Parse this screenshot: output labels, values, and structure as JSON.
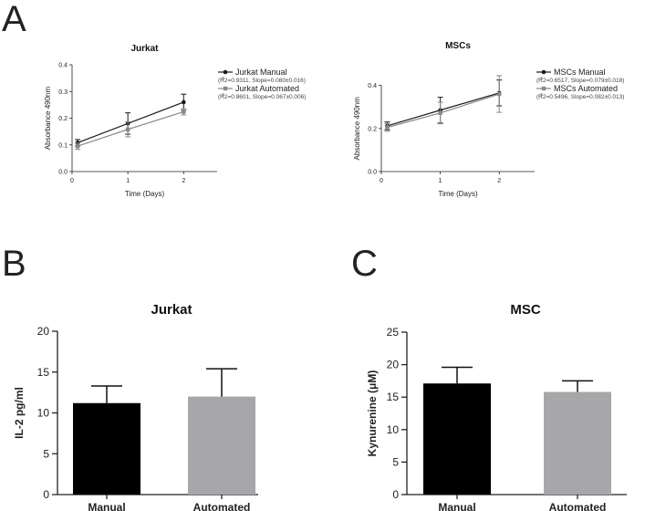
{
  "figure": {
    "panel_letters": [
      "A",
      "B",
      "C"
    ]
  },
  "chart_data": [
    {
      "id": "a1",
      "type": "line",
      "title": "Jurkat",
      "xlabel": "Time (Days)",
      "ylabel": "Absorbance 490nm",
      "xlim": [
        0,
        2.6
      ],
      "ylim": [
        0,
        0.4
      ],
      "xticks": [
        0,
        1,
        2
      ],
      "yticks": [
        0.0,
        0.1,
        0.2,
        0.3,
        0.4
      ],
      "ytick_labels": [
        "0.0",
        "0.1",
        "0.2",
        "0.3",
        "0.4"
      ],
      "series": [
        {
          "name": "Jurkat Manual",
          "fit": "(R2=0.9311, Slope=0.080±0.016)",
          "sup": "2",
          "color": "#1a1a1a",
          "marker": "circle",
          "x": [
            0.1,
            1,
            2
          ],
          "y": [
            0.108,
            0.18,
            0.26
          ],
          "err": [
            0.012,
            0.04,
            0.03
          ]
        },
        {
          "name": "Jurkat Automated",
          "fit": "(R2=0.8601, Slope=0.067±0.006)",
          "sup": "2",
          "color": "#888888",
          "marker": "square",
          "x": [
            0.1,
            1,
            2
          ],
          "y": [
            0.095,
            0.158,
            0.224
          ],
          "err": [
            0.012,
            0.028,
            0.012
          ]
        }
      ]
    },
    {
      "id": "a2",
      "type": "line",
      "title": "MSCs",
      "xlabel": "Time (Days)",
      "ylabel": "Absorbance 490nm",
      "xlim": [
        0,
        2.6
      ],
      "ylim": [
        0,
        0.5
      ],
      "xticks": [
        0,
        1,
        2
      ],
      "yticks": [
        0.0,
        0.2,
        0.4
      ],
      "ytick_labels": [
        "0.0",
        "0.2",
        "0.4"
      ],
      "series": [
        {
          "name": "MSCs Manual",
          "fit": "(R2=0.6517, Slope=0.079±0.018)",
          "sup": "2",
          "color": "#1a1a1a",
          "marker": "circle",
          "x": [
            0.1,
            1,
            2
          ],
          "y": [
            0.212,
            0.285,
            0.365
          ],
          "err": [
            0.018,
            0.06,
            0.06
          ]
        },
        {
          "name": "MSCs Automated",
          "fit": "(R2=0.5496, Slope=0.082±0.013)",
          "sup": "2",
          "color": "#888888",
          "marker": "square",
          "x": [
            0.1,
            1,
            2
          ],
          "y": [
            0.205,
            0.272,
            0.36
          ],
          "err": [
            0.018,
            0.05,
            0.085
          ]
        }
      ]
    },
    {
      "id": "b",
      "type": "bar",
      "title": "Jurkat",
      "xlabel": "",
      "ylabel": "IL-2 pg/ml",
      "ylim": [
        0,
        20
      ],
      "yticks": [
        0,
        5,
        10,
        15,
        20
      ],
      "ytick_labels": [
        "0",
        "5",
        "10",
        "15",
        "20"
      ],
      "categories": [
        "Manual",
        "Automated"
      ],
      "values": [
        11.2,
        12.0
      ],
      "errors": [
        2.1,
        3.4
      ],
      "colors": [
        "#000000",
        "#a7a7ab"
      ]
    },
    {
      "id": "c",
      "type": "bar",
      "title": "MSC",
      "xlabel": "",
      "ylabel": "Kynurenine (μM)",
      "ylim": [
        0,
        25
      ],
      "yticks": [
        0,
        5,
        10,
        15,
        20,
        25
      ],
      "ytick_labels": [
        "0",
        "5",
        "10",
        "15",
        "20",
        "25"
      ],
      "categories": [
        "Manual",
        "Automated"
      ],
      "values": [
        17.1,
        15.8
      ],
      "errors": [
        2.5,
        1.7
      ],
      "colors": [
        "#000000",
        "#a7a7ab"
      ]
    }
  ]
}
